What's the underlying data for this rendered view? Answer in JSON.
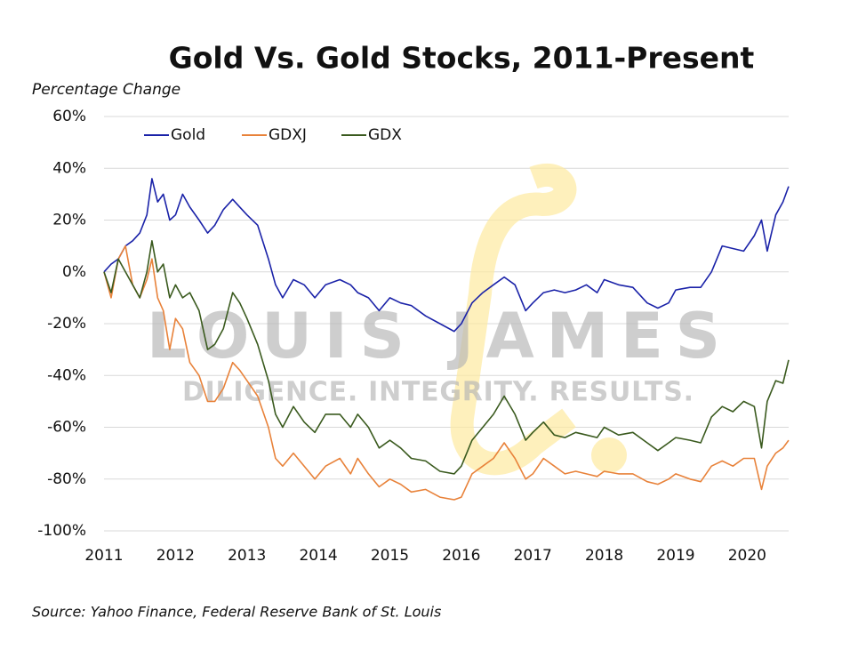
{
  "chart_data": {
    "type": "line",
    "title": "Gold Vs. Gold Stocks, 2011-Present",
    "y_label": "Percentage Change",
    "source": "Source: Yahoo Finance, Federal Reserve Bank of St. Louis",
    "x": [
      2011,
      2011.1,
      2011.2,
      2011.3,
      2011.4,
      2011.5,
      2011.6,
      2011.67,
      2011.75,
      2011.83,
      2011.92,
      2012,
      2012.1,
      2012.2,
      2012.33,
      2012.45,
      2012.55,
      2012.67,
      2012.8,
      2012.9,
      2013,
      2013.15,
      2013.3,
      2013.4,
      2013.5,
      2013.65,
      2013.8,
      2013.95,
      2014.1,
      2014.3,
      2014.45,
      2014.55,
      2014.7,
      2014.85,
      2015,
      2015.15,
      2015.3,
      2015.5,
      2015.7,
      2015.9,
      2016,
      2016.15,
      2016.3,
      2016.45,
      2016.6,
      2016.75,
      2016.9,
      2017,
      2017.15,
      2017.3,
      2017.45,
      2017.6,
      2017.75,
      2017.9,
      2018,
      2018.2,
      2018.4,
      2018.6,
      2018.75,
      2018.9,
      2019,
      2019.2,
      2019.35,
      2019.5,
      2019.65,
      2019.8,
      2019.95,
      2020.1,
      2020.2,
      2020.28,
      2020.4,
      2020.5,
      2020.58
    ],
    "series": [
      {
        "name": "Gold",
        "color": "#1a22a8",
        "values": [
          0,
          3,
          5,
          10,
          12,
          15,
          22,
          36,
          27,
          30,
          20,
          22,
          30,
          25,
          20,
          15,
          18,
          24,
          28,
          25,
          22,
          18,
          5,
          -5,
          -10,
          -3,
          -5,
          -10,
          -5,
          -3,
          -5,
          -8,
          -10,
          -15,
          -10,
          -12,
          -13,
          -17,
          -20,
          -23,
          -20,
          -12,
          -8,
          -5,
          -2,
          -5,
          -15,
          -12,
          -8,
          -7,
          -8,
          -7,
          -5,
          -8,
          -3,
          -5,
          -6,
          -12,
          -14,
          -12,
          -7,
          -6,
          -6,
          0,
          10,
          9,
          8,
          14,
          20,
          8,
          22,
          27,
          33
        ]
      },
      {
        "name": "GDXJ",
        "color": "#e8823a",
        "values": [
          0,
          -10,
          5,
          10,
          -5,
          -10,
          -3,
          5,
          -10,
          -15,
          -30,
          -18,
          -22,
          -35,
          -40,
          -50,
          -50,
          -45,
          -35,
          -38,
          -42,
          -48,
          -60,
          -72,
          -75,
          -70,
          -75,
          -80,
          -75,
          -72,
          -78,
          -72,
          -78,
          -83,
          -80,
          -82,
          -85,
          -84,
          -87,
          -88,
          -87,
          -78,
          -75,
          -72,
          -66,
          -72,
          -80,
          -78,
          -72,
          -75,
          -78,
          -77,
          -78,
          -79,
          -77,
          -78,
          -78,
          -81,
          -82,
          -80,
          -78,
          -80,
          -81,
          -75,
          -73,
          -75,
          -72,
          -72,
          -84,
          -75,
          -70,
          -68,
          -65
        ]
      },
      {
        "name": "GDX",
        "color": "#3a5a1e",
        "values": [
          0,
          -8,
          5,
          0,
          -5,
          -10,
          0,
          12,
          0,
          3,
          -10,
          -5,
          -10,
          -8,
          -15,
          -30,
          -28,
          -22,
          -8,
          -12,
          -18,
          -28,
          -42,
          -55,
          -60,
          -52,
          -58,
          -62,
          -55,
          -55,
          -60,
          -55,
          -60,
          -68,
          -65,
          -68,
          -72,
          -73,
          -77,
          -78,
          -75,
          -65,
          -60,
          -55,
          -48,
          -55,
          -65,
          -62,
          -58,
          -63,
          -64,
          -62,
          -63,
          -64,
          -60,
          -63,
          -62,
          -66,
          -69,
          -66,
          -64,
          -65,
          -66,
          -56,
          -52,
          -54,
          -50,
          -52,
          -68,
          -50,
          -42,
          -43,
          -34
        ]
      }
    ],
    "xlim": [
      2011,
      2020.58
    ],
    "xticks": [
      2011,
      2012,
      2013,
      2014,
      2015,
      2016,
      2017,
      2018,
      2019,
      2020
    ],
    "ylim": [
      -100,
      60
    ],
    "yticks": [
      {
        "value": -100,
        "label": "-100%"
      },
      {
        "value": -80,
        "label": "-80%"
      },
      {
        "value": -60,
        "label": "-60%"
      },
      {
        "value": -40,
        "label": "-40%"
      },
      {
        "value": -20,
        "label": "-20%"
      },
      {
        "value": 0,
        "label": "0%"
      },
      {
        "value": 20,
        "label": "20%"
      },
      {
        "value": 40,
        "label": "40%"
      },
      {
        "value": 60,
        "label": "60%"
      }
    ],
    "grid": true,
    "legend": "top-left"
  },
  "watermark": {
    "name": "LOUIS JAMES",
    "tagline": "DILIGENCE. INTEGRITY. RESULTS."
  }
}
